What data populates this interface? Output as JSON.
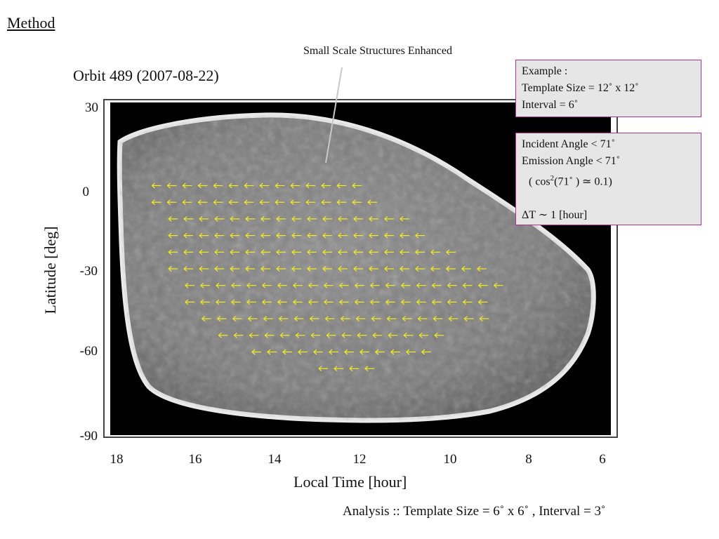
{
  "heading": "Method",
  "annotation": "Small Scale Structures Enhanced",
  "orbit_title": "Orbit 489 (2007-08-22)",
  "axes": {
    "y_label": "Latitude [deg]",
    "x_label": "Local Time [hour]",
    "y_ticks": [
      "30",
      "0",
      "-30",
      "-60",
      "-90"
    ],
    "x_ticks": [
      "18",
      "16",
      "14",
      "12",
      "10",
      "8",
      "6"
    ]
  },
  "example_box": {
    "line1": "Example :",
    "line2": "Template Size = 12˚ x 12˚",
    "line3": "Interval = 6˚"
  },
  "angles_box": {
    "line1": "Incident Angle   < 71˚",
    "line2": "Emission Angle < 71˚",
    "line3_prefix": "( cos",
    "line3_sup": "2",
    "line3_suffix": "(71˚ ) ≃ 0.1)",
    "line4": "ΔT ∼ 1 [hour]"
  },
  "caption": "Analysis :: Template Size = 6˚ x 6˚ , Interval = 3˚",
  "colors": {
    "arrow": "#f2ee1c",
    "box_border": "#b0308f",
    "box_fill": "#e6e6e6"
  },
  "arrow_rows": [
    {
      "lat": 0,
      "lt_start": 17.0,
      "count": 14
    },
    {
      "lat": -6,
      "lt_start": 17.0,
      "count": 15
    },
    {
      "lat": -12,
      "lt_start": 16.6,
      "count": 16
    },
    {
      "lat": -18,
      "lt_start": 16.6,
      "count": 17
    },
    {
      "lat": -24,
      "lt_start": 16.6,
      "count": 19
    },
    {
      "lat": -30,
      "lt_start": 16.6,
      "count": 21
    },
    {
      "lat": -36,
      "lt_start": 16.2,
      "count": 21
    },
    {
      "lat": -42,
      "lt_start": 16.2,
      "count": 20
    },
    {
      "lat": -48,
      "lt_start": 15.8,
      "count": 19
    },
    {
      "lat": -54,
      "lt_start": 15.4,
      "count": 15
    },
    {
      "lat": -60,
      "lt_start": 14.6,
      "count": 12
    },
    {
      "lat": -66,
      "lt_start": 13.0,
      "count": 4
    }
  ]
}
